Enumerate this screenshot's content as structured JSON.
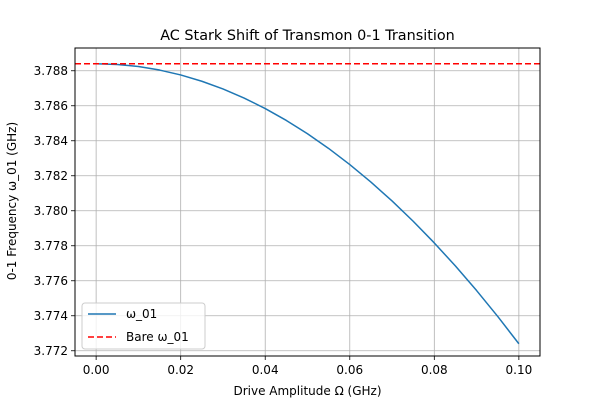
{
  "chart_data": {
    "type": "line",
    "title": "AC Stark Shift of Transmon 0-1 Transition",
    "xlabel": "Drive Amplitude Ω (GHz)",
    "ylabel": "0-1 Frequency ω_01 (GHz)",
    "xlim": [
      -0.005,
      0.105
    ],
    "ylim": [
      3.7717,
      3.7893
    ],
    "xticks": [
      0.0,
      0.02,
      0.04,
      0.06,
      0.08,
      0.1
    ],
    "xtick_labels": [
      "0.00",
      "0.02",
      "0.04",
      "0.06",
      "0.08",
      "0.10"
    ],
    "yticks": [
      3.772,
      3.774,
      3.776,
      3.778,
      3.78,
      3.782,
      3.784,
      3.786,
      3.788
    ],
    "ytick_labels": [
      "3.772",
      "3.774",
      "3.776",
      "3.778",
      "3.780",
      "3.782",
      "3.784",
      "3.786",
      "3.788"
    ],
    "grid": true,
    "legend_position": "lower left",
    "series": [
      {
        "name": "ω_01",
        "style": "solid",
        "color": "#1f77b4",
        "x": [
          0.0,
          0.005,
          0.01,
          0.015,
          0.02,
          0.025,
          0.03,
          0.035,
          0.04,
          0.045,
          0.05,
          0.055,
          0.06,
          0.065,
          0.07,
          0.075,
          0.08,
          0.085,
          0.09,
          0.095,
          0.1
        ],
        "y": [
          3.7884,
          3.78836,
          3.78824,
          3.78804,
          3.78776,
          3.7874,
          3.78696,
          3.78644,
          3.78584,
          3.78516,
          3.7844,
          3.78356,
          3.78264,
          3.78164,
          3.78056,
          3.7794,
          3.77816,
          3.77684,
          3.77544,
          3.77396,
          3.7724
        ]
      },
      {
        "name": "Bare ω_01",
        "style": "dashed",
        "color": "#ff0000",
        "hline": 3.7884
      }
    ]
  }
}
